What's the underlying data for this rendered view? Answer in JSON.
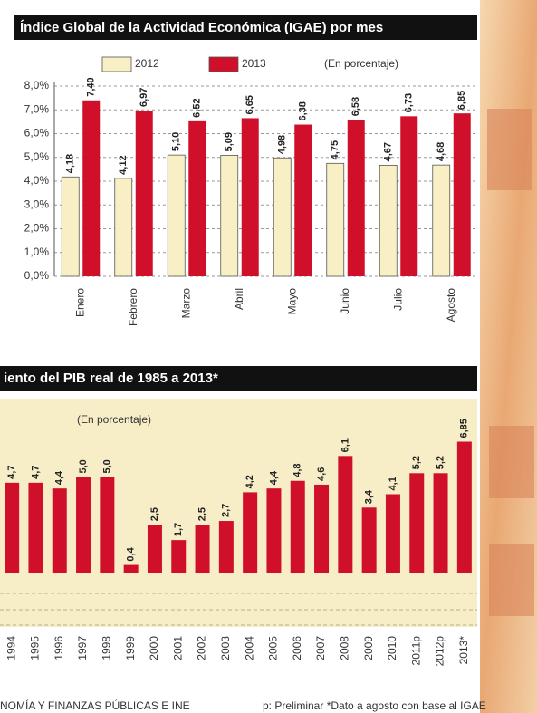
{
  "chart_data": [
    {
      "type": "bar",
      "title": "Índice Global de la Actividad Económica (IGAE) por mes",
      "subtitle": "(En porcentaje)",
      "categories": [
        "Enero",
        "Febrero",
        "Marzo",
        "Abril",
        "Mayo",
        "Junio",
        "Julio",
        "Agosto"
      ],
      "series": [
        {
          "name": "2012",
          "color": "#f8f0c4",
          "values": [
            4.18,
            4.12,
            5.1,
            5.09,
            4.98,
            4.75,
            4.67,
            4.68
          ],
          "value_labels": [
            "4,18",
            "4,12",
            "5,10",
            "5,09",
            "4,98",
            "4,75",
            "4,67",
            "4,68"
          ]
        },
        {
          "name": "2013",
          "color": "#d0102a",
          "values": [
            7.4,
            6.97,
            6.52,
            6.65,
            6.38,
            6.58,
            6.73,
            6.85
          ],
          "value_labels": [
            "7,40",
            "6,97",
            "6,52",
            "6,65",
            "6,38",
            "6,58",
            "6,73",
            "6,85"
          ]
        }
      ],
      "ylim": [
        0,
        8
      ],
      "yticks": [
        {
          "value": 0,
          "label": "0,0%"
        },
        {
          "value": 1,
          "label": "1,0%"
        },
        {
          "value": 2,
          "label": "2,0%"
        },
        {
          "value": 3,
          "label": "3,0%"
        },
        {
          "value": 4,
          "label": "4,0%"
        },
        {
          "value": 5,
          "label": "5,0%"
        },
        {
          "value": 6,
          "label": "6,0%"
        },
        {
          "value": 7,
          "label": "7,0%"
        },
        {
          "value": 8,
          "label": "8,0%"
        }
      ],
      "grid": true
    },
    {
      "type": "bar",
      "title": "iento del PIB real de 1985 a 2013*",
      "subtitle": "(En porcentaje)",
      "categories": [
        "1994",
        "1995",
        "1996",
        "1997",
        "1998",
        "1999",
        "2000",
        "2001",
        "2002",
        "2003",
        "2004",
        "2005",
        "2006",
        "2007",
        "2008",
        "2009",
        "2010",
        "2011p",
        "2012p",
        "2013*"
      ],
      "series": [
        {
          "color": "#d0102a",
          "values": [
            4.7,
            4.7,
            4.4,
            5.0,
            5.0,
            0.4,
            2.5,
            1.7,
            2.5,
            2.7,
            4.2,
            4.4,
            4.8,
            4.6,
            6.1,
            3.4,
            4.1,
            5.2,
            5.2,
            6.85
          ],
          "value_labels": [
            "4,7",
            "4,7",
            "4,4",
            "5,0",
            "5,0",
            "0,4",
            "2,5",
            "1,7",
            "2,5",
            "2,7",
            "4,2",
            "4,4",
            "4,8",
            "4,6",
            "6,1",
            "3,4",
            "4,1",
            "5,2",
            "5,2",
            "6,85"
          ]
        }
      ],
      "ylim": [
        0,
        7.3
      ],
      "grid": false
    }
  ],
  "footer": {
    "source": "NOMÍA Y FINANZAS PÚBLICAS E INE",
    "note": "p: Preliminar   *Dato a agosto con base al IGAE"
  }
}
